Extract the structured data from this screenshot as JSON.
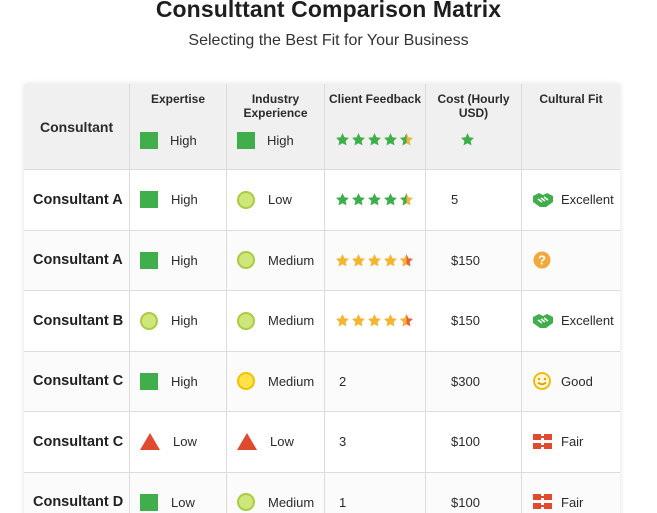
{
  "title": "Consulttant Comparison Matrix",
  "subtitle": "Selecting the Best Fit for Your Business",
  "colors": {
    "green": "#3fae4b",
    "light_green": "#cfe67a",
    "yellow": "#ffe14a",
    "red": "#e04a2e",
    "orange_star": "#f2a93b",
    "gold_star": "#f5b52e"
  },
  "headers": {
    "consultant": "Consultant",
    "expertise": "Expertise",
    "industry": "Industry Experience",
    "feedback": "Client Feedback",
    "cost": "Cost (Hourly USD)",
    "fit": "Cultural Fit"
  },
  "header_samples": {
    "expertise": {
      "icon": "green-square",
      "text": "High"
    },
    "industry": {
      "icon": "green-square",
      "text": "High"
    },
    "feedback_rating": 4.5,
    "cost_icon": "star-icon"
  },
  "rows": [
    {
      "name": "Consultant A",
      "expertise_icon": "green-square",
      "expertise": "High",
      "industry_icon": "light-green-circle",
      "industry": "Low",
      "feedback_type": "stars",
      "rating": 4.5,
      "star_style": "green",
      "cost": "5",
      "fit_icon": "handshake-icon",
      "fit": "Excellent"
    },
    {
      "name": "Consultant A",
      "expertise_icon": "green-square",
      "expertise": "High",
      "industry_icon": "light-green-circle",
      "industry": "Medium",
      "feedback_type": "stars",
      "rating": 4.5,
      "star_style": "gold",
      "cost": "$150",
      "fit_icon": "question-icon",
      "fit": ""
    },
    {
      "name": "Consultant B",
      "expertise_icon": "light-green-circle",
      "expertise": "High",
      "industry_icon": "light-green-circle",
      "industry": "Medium",
      "feedback_type": "stars",
      "rating": 4.5,
      "star_style": "gold",
      "cost": "$150",
      "fit_icon": "handshake-icon",
      "fit": "Excellent"
    },
    {
      "name": "Consultant C",
      "expertise_icon": "green-square",
      "expertise": "High",
      "industry_icon": "yellow-circle",
      "industry": "Medium",
      "feedback_type": "number",
      "feedback": "2",
      "cost": "$300",
      "fit_icon": "smiley-icon",
      "fit": "Good"
    },
    {
      "name": "Consultant C",
      "expertise_icon": "red-triangle",
      "expertise": "Low",
      "industry_icon": "red-triangle",
      "industry": "Low",
      "feedback_type": "number",
      "feedback": "3",
      "cost": "$100",
      "fit_icon": "puzzle-icon",
      "fit": "Fair"
    },
    {
      "name": "Consultant D",
      "expertise_icon": "green-square",
      "expertise": "Low",
      "industry_icon": "light-green-circle",
      "industry": "Medium",
      "feedback_type": "number",
      "feedback": "1",
      "cost": "$100",
      "fit_icon": "puzzle-icon",
      "fit": "Fair"
    }
  ]
}
